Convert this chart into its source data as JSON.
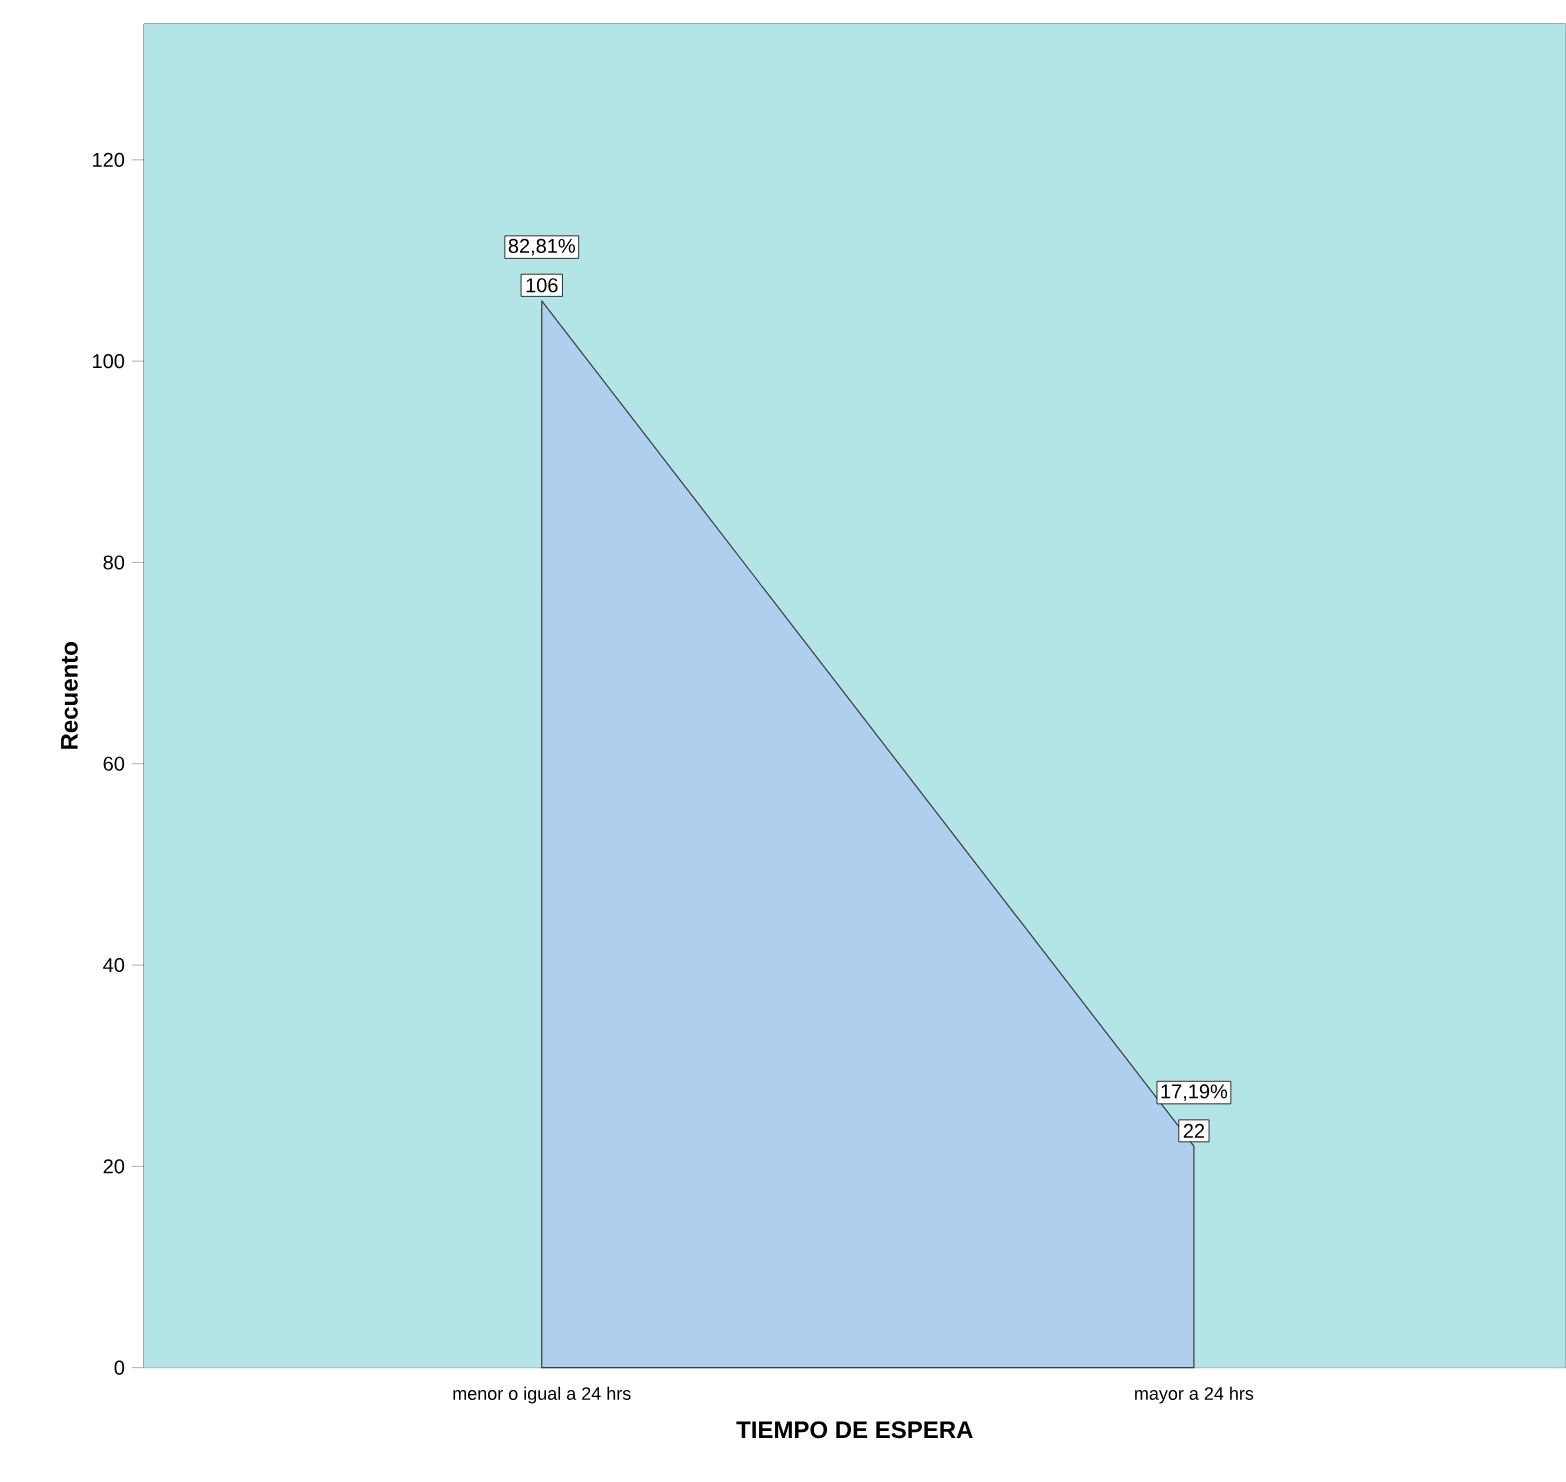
{
  "chart_data": {
    "type": "area",
    "xlabel": "TIEMPO DE ESPERA",
    "ylabel": "Recuento",
    "categories": [
      "menor o igual a 24 hrs",
      "mayor a 24 hrs"
    ],
    "values": [
      106,
      22
    ],
    "color": "#aecfee",
    "data_labels": true,
    "annotations": [
      {
        "text": "82,81%",
        "x": "menor o igual a 24 hrs",
        "y": 106
      },
      {
        "text": "17,19%",
        "x": "mayor a 24 hrs",
        "y": 22
      }
    ],
    "ylim": [
      0,
      133.5
    ],
    "yticks": [
      0,
      20,
      40,
      60,
      80,
      100,
      120
    ],
    "grid": false
  }
}
